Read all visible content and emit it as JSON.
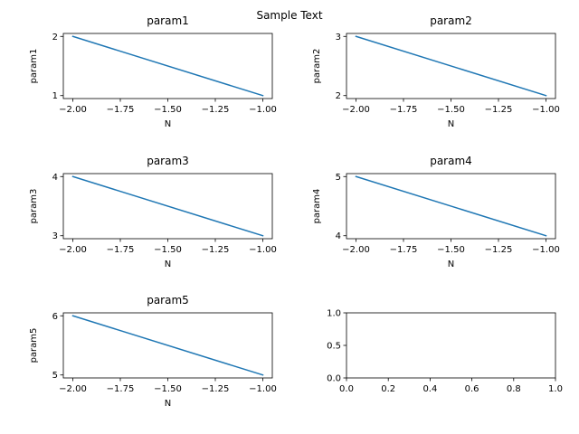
{
  "figure": {
    "suptitle": "Sample Text"
  },
  "chart_data": [
    {
      "type": "line",
      "title": "param1",
      "xlabel": "N",
      "ylabel": "param1",
      "x": [
        -2.0,
        -1.0
      ],
      "series": [
        {
          "values": [
            2,
            1
          ],
          "color": "#1f77b4"
        }
      ],
      "xlim": [
        -2.05,
        -0.95
      ],
      "ylim": [
        0.95,
        2.05
      ],
      "xticks": [
        -2.0,
        -1.75,
        -1.5,
        -1.25,
        -1.0
      ],
      "xticklabels": [
        "−2.00",
        "−1.75",
        "−1.50",
        "−1.25",
        "−1.00"
      ],
      "yticks": [
        1,
        2
      ],
      "yticklabels": [
        "1",
        "2"
      ],
      "grid": false
    },
    {
      "type": "line",
      "title": "param2",
      "xlabel": "N",
      "ylabel": "param2",
      "x": [
        -2.0,
        -1.0
      ],
      "series": [
        {
          "values": [
            3,
            2
          ],
          "color": "#1f77b4"
        }
      ],
      "xlim": [
        -2.05,
        -0.95
      ],
      "ylim": [
        1.95,
        3.05
      ],
      "xticks": [
        -2.0,
        -1.75,
        -1.5,
        -1.25,
        -1.0
      ],
      "xticklabels": [
        "−2.00",
        "−1.75",
        "−1.50",
        "−1.25",
        "−1.00"
      ],
      "yticks": [
        2,
        3
      ],
      "yticklabels": [
        "2",
        "3"
      ],
      "grid": false
    },
    {
      "type": "line",
      "title": "param3",
      "xlabel": "N",
      "ylabel": "param3",
      "x": [
        -2.0,
        -1.0
      ],
      "series": [
        {
          "values": [
            4,
            3
          ],
          "color": "#1f77b4"
        }
      ],
      "xlim": [
        -2.05,
        -0.95
      ],
      "ylim": [
        2.95,
        4.05
      ],
      "xticks": [
        -2.0,
        -1.75,
        -1.5,
        -1.25,
        -1.0
      ],
      "xticklabels": [
        "−2.00",
        "−1.75",
        "−1.50",
        "−1.25",
        "−1.00"
      ],
      "yticks": [
        3,
        4
      ],
      "yticklabels": [
        "3",
        "4"
      ],
      "grid": false
    },
    {
      "type": "line",
      "title": "param4",
      "xlabel": "N",
      "ylabel": "param4",
      "x": [
        -2.0,
        -1.0
      ],
      "series": [
        {
          "values": [
            5,
            4
          ],
          "color": "#1f77b4"
        }
      ],
      "xlim": [
        -2.05,
        -0.95
      ],
      "ylim": [
        3.95,
        5.05
      ],
      "xticks": [
        -2.0,
        -1.75,
        -1.5,
        -1.25,
        -1.0
      ],
      "xticklabels": [
        "−2.00",
        "−1.75",
        "−1.50",
        "−1.25",
        "−1.00"
      ],
      "yticks": [
        4,
        5
      ],
      "yticklabels": [
        "4",
        "5"
      ],
      "grid": false
    },
    {
      "type": "line",
      "title": "param5",
      "xlabel": "N",
      "ylabel": "param5",
      "x": [
        -2.0,
        -1.0
      ],
      "series": [
        {
          "values": [
            6,
            5
          ],
          "color": "#1f77b4"
        }
      ],
      "xlim": [
        -2.05,
        -0.95
      ],
      "ylim": [
        4.95,
        6.05
      ],
      "xticks": [
        -2.0,
        -1.75,
        -1.5,
        -1.25,
        -1.0
      ],
      "xticklabels": [
        "−2.00",
        "−1.75",
        "−1.50",
        "−1.25",
        "−1.00"
      ],
      "yticks": [
        5,
        6
      ],
      "yticklabels": [
        "5",
        "6"
      ],
      "grid": false
    },
    {
      "type": "line",
      "title": "",
      "xlabel": "",
      "ylabel": "",
      "x": [],
      "series": [],
      "xlim": [
        0.0,
        1.0
      ],
      "ylim": [
        0.0,
        1.0
      ],
      "xticks": [
        0.0,
        0.2,
        0.4,
        0.6,
        0.8,
        1.0
      ],
      "xticklabels": [
        "0.0",
        "0.2",
        "0.4",
        "0.6",
        "0.8",
        "1.0"
      ],
      "yticks": [
        0.0,
        0.5,
        1.0
      ],
      "yticklabels": [
        "0.0",
        "0.5",
        "1.0"
      ],
      "grid": false
    }
  ]
}
